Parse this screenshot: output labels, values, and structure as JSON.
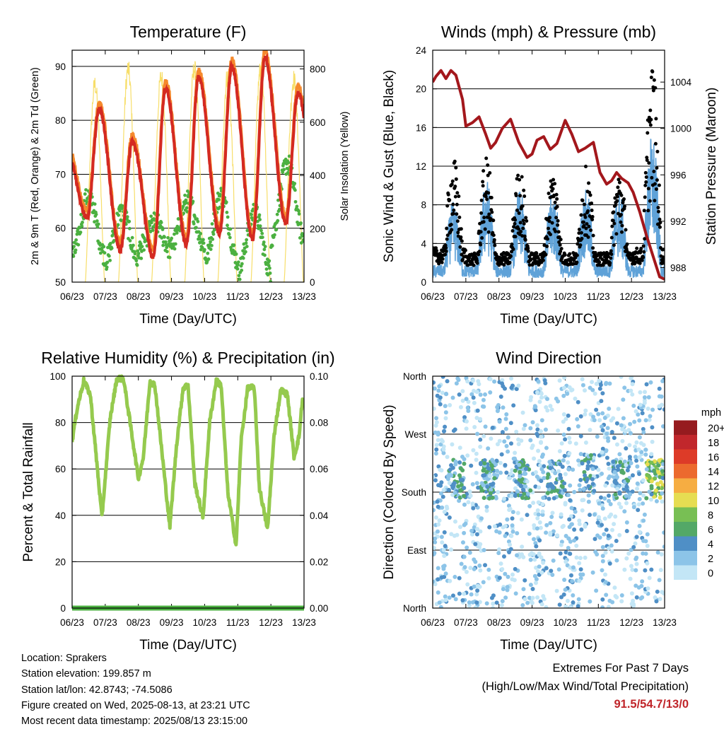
{
  "panels": {
    "temperature": {
      "title": "Temperature (F)",
      "ylabel_left": "2m & 9m T (Red, Orange) & 2m Td (Green)",
      "ylabel_right": "Solar Insolation (Yellow)",
      "xlabel": "Time (Day/UTC)"
    },
    "winds": {
      "title": "Winds (mph) & Pressure (mb)",
      "ylabel_left": "Sonic Wind & Gust (Blue, Black)",
      "ylabel_right": "Station Pressure (Maroon)",
      "xlabel": "Time (Day/UTC)"
    },
    "humidity": {
      "title": "Relative Humidity (%) & Precipitation (in)",
      "ylabel_left": "Percent & Total Rainfall",
      "xlabel": "Time (Day/UTC)"
    },
    "direction": {
      "title": "Wind Direction",
      "ylabel_left": "Direction (Colored By Speed)",
      "xlabel": "Time (Day/UTC)",
      "colorbar_unit": "mph"
    }
  },
  "info": {
    "location": "Location: Sprakers",
    "elevation": "Station elevation: 199.857 m",
    "latlon": "Station lat/lon: 42.8743; -74.5086",
    "created": "Figure created on Wed, 2025-08-13, at 23:21 UTC",
    "recent": "Most recent data timestamp: 2025/08/13 23:15:00"
  },
  "extremes": {
    "line1": "Extremes For Past 7 Days",
    "line2": "(High/Low/Max Wind/Total Precipitation)",
    "values": "91.5/54.7/13/0"
  },
  "colors": {
    "temp2m": "#d42a22",
    "temp9m": "#f5892c",
    "dewpoint": "#4bb040",
    "solar": "#f7de6a",
    "wind": "#5fa2d8",
    "gust": "#000000",
    "pressure": "#a3171c",
    "rh": "#95ca4e",
    "precip": "#4bb040"
  },
  "chart_data": [
    {
      "type": "line",
      "title": "Temperature (F)",
      "xlabel": "Time (Day/UTC)",
      "x_ticks": [
        "06/23",
        "07/23",
        "08/23",
        "09/23",
        "10/23",
        "11/23",
        "12/23",
        "13/23"
      ],
      "x_range": [
        "06/23",
        "13/23"
      ],
      "ylim": [
        50,
        93
      ],
      "y_ticks": [
        50,
        60,
        70,
        80,
        90
      ],
      "y2lim": [
        0,
        870
      ],
      "y2_ticks": [
        0,
        200,
        400,
        600,
        800
      ],
      "grid_y": [
        60,
        70,
        80,
        90
      ],
      "daily_max_t": [
        82,
        76,
        86,
        88,
        90,
        91.5,
        85
      ],
      "daily_min_t": [
        62,
        56,
        54.7,
        57,
        59,
        58,
        61
      ],
      "daily_td_min": [
        55,
        54,
        56,
        57,
        54,
        52,
        58
      ],
      "daily_td_max": [
        66,
        63,
        61,
        65,
        66,
        63,
        72
      ],
      "daily_solar_peak": [
        780,
        840,
        810,
        840,
        810,
        840,
        800
      ],
      "series": [
        {
          "name": "2m T",
          "axis": "left"
        },
        {
          "name": "9m T",
          "axis": "left"
        },
        {
          "name": "2m Td",
          "axis": "left"
        },
        {
          "name": "Solar Insolation",
          "axis": "right"
        }
      ]
    },
    {
      "type": "line",
      "title": "Winds (mph) & Pressure (mb)",
      "xlabel": "Time (Day/UTC)",
      "x_ticks": [
        "06/23",
        "07/23",
        "08/23",
        "09/23",
        "10/23",
        "11/23",
        "12/23",
        "13/23"
      ],
      "ylim": [
        0,
        24
      ],
      "y_ticks": [
        0,
        4,
        8,
        12,
        16,
        20,
        24
      ],
      "y2lim": [
        986.75,
        1006.75
      ],
      "y2_ticks": [
        988,
        992,
        996,
        1000,
        1004
      ],
      "grid_y": [
        4,
        8,
        12,
        16,
        20
      ],
      "pressure_x": [
        0,
        0.1,
        0.25,
        0.4,
        0.55,
        0.7,
        0.9,
        1.0,
        1.2,
        1.4,
        1.6,
        1.75,
        1.9,
        2.1,
        2.35,
        2.6,
        2.85,
        3.0,
        3.15,
        3.35,
        3.55,
        3.75,
        4.0,
        4.2,
        4.4,
        4.6,
        4.85,
        5.05,
        5.25,
        5.4,
        5.55,
        5.7,
        5.9,
        6.05,
        6.25,
        6.45,
        6.65,
        6.85,
        7.0
      ],
      "pressure": [
        1004,
        1004.5,
        1005,
        1004.3,
        1005,
        1004.6,
        1002.5,
        1000.2,
        1000.5,
        1001,
        999.5,
        998.3,
        998.8,
        1000,
        1000.8,
        998.8,
        997.5,
        997.8,
        999,
        999.3,
        998.2,
        998.7,
        1000.7,
        999.5,
        998,
        998.3,
        998.8,
        996.2,
        995.2,
        995.5,
        996.2,
        995.7,
        995.3,
        994.5,
        992.8,
        990.8,
        989,
        987.2,
        987
      ],
      "daily_wind_peak": [
        7,
        9,
        8,
        8,
        8,
        8,
        13
      ],
      "daily_gust_peak": [
        12,
        12,
        11,
        11,
        11,
        11,
        22
      ],
      "series": [
        {
          "name": "Sonic Wind",
          "axis": "left"
        },
        {
          "name": "Gust",
          "axis": "left"
        },
        {
          "name": "Station Pressure",
          "axis": "right"
        }
      ]
    },
    {
      "type": "line",
      "title": "Relative Humidity (%) & Precipitation (in)",
      "xlabel": "Time (Day/UTC)",
      "x_ticks": [
        "06/23",
        "07/23",
        "08/23",
        "09/23",
        "10/23",
        "11/23",
        "12/23",
        "13/23"
      ],
      "ylim": [
        0,
        100
      ],
      "y_ticks": [
        0,
        20,
        40,
        60,
        80,
        100
      ],
      "y2lim": [
        0,
        0.1
      ],
      "y2_ticks": [
        "0.00",
        "0.02",
        "0.04",
        "0.06",
        "0.08",
        "0.10"
      ],
      "grid_y": [
        20,
        40,
        60,
        80
      ],
      "rh_x": [
        0,
        0.15,
        0.35,
        0.55,
        0.75,
        0.9,
        1.15,
        1.35,
        1.55,
        1.75,
        2.0,
        2.15,
        2.35,
        2.5,
        2.75,
        2.95,
        3.15,
        3.35,
        3.5,
        3.7,
        3.95,
        4.15,
        4.35,
        4.5,
        4.7,
        4.95,
        5.1,
        5.3,
        5.5,
        5.65,
        5.9,
        6.1,
        6.3,
        6.5,
        6.7,
        6.85,
        6.95,
        7.0
      ],
      "rh": [
        72,
        86,
        98,
        92,
        62,
        39,
        82,
        99,
        99,
        80,
        56,
        65,
        98,
        96,
        62,
        35,
        70,
        95,
        96,
        54,
        39,
        80,
        98,
        96,
        50,
        27,
        72,
        95,
        95,
        52,
        34,
        75,
        94,
        92,
        65,
        74,
        90,
        87
      ],
      "precip_total": 0,
      "series": [
        {
          "name": "Relative Humidity",
          "axis": "left"
        },
        {
          "name": "Total Rainfall",
          "axis": "right"
        }
      ]
    },
    {
      "type": "scatter",
      "title": "Wind Direction",
      "xlabel": "Time (Day/UTC)",
      "x_ticks": [
        "06/23",
        "07/23",
        "08/23",
        "09/23",
        "10/23",
        "11/23",
        "12/23",
        "13/23"
      ],
      "y_ticks": [
        "North",
        "East",
        "South",
        "West",
        "North"
      ],
      "ylim_deg": [
        0,
        360
      ],
      "colorbar_levels": [
        "0",
        "2",
        "4",
        "6",
        "8",
        "10",
        "12",
        "14",
        "16",
        "18",
        "20+"
      ],
      "colorbar_colors": [
        "#c3e6f6",
        "#8cc4e8",
        "#4f8fc6",
        "#53a867",
        "#78bf54",
        "#e6dd52",
        "#f6ad42",
        "#ec6a2e",
        "#dd3b28",
        "#c1272c",
        "#961b1f"
      ],
      "daily_afternoon_direction_deg": [
        200,
        200,
        200,
        200,
        210,
        200,
        200
      ],
      "last_day_max_speed": 12
    }
  ]
}
